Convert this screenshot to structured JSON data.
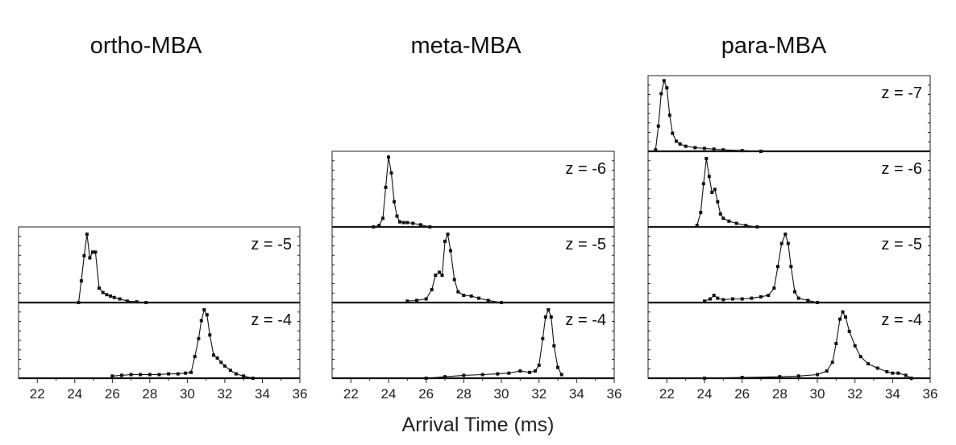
{
  "chart_data": {
    "type": "line",
    "xlabel": "Arrival Time (ms)",
    "xlim": [
      21,
      36
    ],
    "xticks": [
      22,
      24,
      26,
      28,
      30,
      32,
      34,
      36
    ],
    "ylim": [
      0,
      1.05
    ],
    "grid": false,
    "legend": "none",
    "columns": [
      {
        "title": "ortho-MBA",
        "panels": [
          {
            "label": "z = -5",
            "x": [
              24.2,
              24.35,
              24.5,
              24.65,
              24.8,
              24.95,
              25.1,
              25.3,
              25.5,
              25.7,
              25.9,
              26.1,
              26.4,
              26.8,
              27.3,
              27.8
            ],
            "y": [
              0.0,
              0.3,
              0.65,
              0.95,
              0.62,
              0.7,
              0.7,
              0.2,
              0.14,
              0.11,
              0.09,
              0.07,
              0.05,
              0.02,
              0.01,
              0.0
            ]
          },
          {
            "label": "z = -4",
            "x": [
              26.0,
              26.5,
              27.0,
              27.5,
              28.0,
              28.5,
              29.0,
              29.5,
              29.9,
              30.2,
              30.4,
              30.6,
              30.75,
              30.9,
              31.05,
              31.2,
              31.4,
              31.6,
              31.8,
              32.0,
              32.3,
              32.6,
              33.0,
              33.5
            ],
            "y": [
              0.03,
              0.04,
              0.05,
              0.05,
              0.05,
              0.05,
              0.06,
              0.06,
              0.07,
              0.08,
              0.3,
              0.55,
              0.8,
              0.95,
              0.88,
              0.6,
              0.32,
              0.28,
              0.22,
              0.17,
              0.11,
              0.06,
              0.03,
              0.0
            ]
          }
        ]
      },
      {
        "title": "meta-MBA",
        "panels": [
          {
            "label": "z = -6",
            "x": [
              23.2,
              23.5,
              23.7,
              23.85,
              24.0,
              24.15,
              24.3,
              24.45,
              24.6,
              24.8,
              25.0,
              25.3,
              25.7,
              26.2
            ],
            "y": [
              0.0,
              0.02,
              0.12,
              0.55,
              0.97,
              0.75,
              0.35,
              0.15,
              0.07,
              0.06,
              0.06,
              0.05,
              0.03,
              0.0
            ]
          },
          {
            "label": "z = -5",
            "x": [
              25.0,
              25.5,
              26.0,
              26.3,
              26.5,
              26.7,
              26.85,
              27.0,
              27.15,
              27.3,
              27.5,
              27.7,
              28.0,
              28.4,
              28.8,
              29.3,
              30.0
            ],
            "y": [
              0.02,
              0.03,
              0.05,
              0.18,
              0.38,
              0.42,
              0.38,
              0.85,
              0.95,
              0.72,
              0.32,
              0.15,
              0.1,
              0.09,
              0.06,
              0.03,
              0.0
            ]
          },
          {
            "label": "z = -4",
            "x": [
              26.0,
              27.0,
              28.0,
              29.0,
              29.8,
              30.4,
              31.0,
              31.5,
              31.8,
              32.0,
              32.2,
              32.35,
              32.5,
              32.65,
              32.8,
              33.0,
              33.2
            ],
            "y": [
              0.0,
              0.02,
              0.04,
              0.05,
              0.06,
              0.07,
              0.1,
              0.08,
              0.1,
              0.18,
              0.55,
              0.85,
              0.95,
              0.85,
              0.45,
              0.15,
              0.05
            ]
          }
        ]
      },
      {
        "title": "para-MBA",
        "panels": [
          {
            "label": "z = -7",
            "x": [
              21.4,
              21.55,
              21.7,
              21.85,
              22.0,
              22.15,
              22.3,
              22.5,
              22.7,
              23.0,
              23.5,
              24.0,
              24.5,
              25.0,
              26.0,
              27.0
            ],
            "y": [
              0.02,
              0.35,
              0.8,
              0.98,
              0.88,
              0.5,
              0.25,
              0.14,
              0.1,
              0.07,
              0.05,
              0.04,
              0.03,
              0.02,
              0.01,
              0.0
            ]
          },
          {
            "label": "z = -6",
            "x": [
              23.6,
              23.8,
              23.95,
              24.1,
              24.25,
              24.4,
              24.55,
              24.7,
              24.85,
              25.0,
              25.3,
              25.7,
              26.2,
              26.8
            ],
            "y": [
              0.02,
              0.2,
              0.6,
              0.95,
              0.7,
              0.48,
              0.52,
              0.35,
              0.18,
              0.12,
              0.08,
              0.05,
              0.02,
              0.0
            ]
          },
          {
            "label": "z = -5",
            "x": [
              24.0,
              24.3,
              24.5,
              24.7,
              25.0,
              25.5,
              26.0,
              26.5,
              27.0,
              27.4,
              27.7,
              27.9,
              28.1,
              28.3,
              28.45,
              28.6,
              28.8,
              29.0,
              29.5,
              30.0
            ],
            "y": [
              0.02,
              0.05,
              0.1,
              0.06,
              0.04,
              0.05,
              0.05,
              0.06,
              0.08,
              0.1,
              0.2,
              0.5,
              0.82,
              0.95,
              0.82,
              0.5,
              0.15,
              0.06,
              0.03,
              0.0
            ]
          },
          {
            "label": "z = -4",
            "x": [
              24.0,
              26.0,
              28.0,
              29.0,
              30.0,
              30.5,
              30.8,
              31.0,
              31.2,
              31.35,
              31.5,
              31.7,
              32.0,
              32.3,
              32.7,
              33.2,
              33.7,
              34.0,
              34.3,
              34.7,
              35.0
            ],
            "y": [
              0.0,
              0.01,
              0.02,
              0.03,
              0.05,
              0.1,
              0.22,
              0.48,
              0.82,
              0.92,
              0.85,
              0.65,
              0.45,
              0.3,
              0.2,
              0.14,
              0.09,
              0.07,
              0.07,
              0.04,
              0.0
            ]
          }
        ]
      }
    ]
  }
}
